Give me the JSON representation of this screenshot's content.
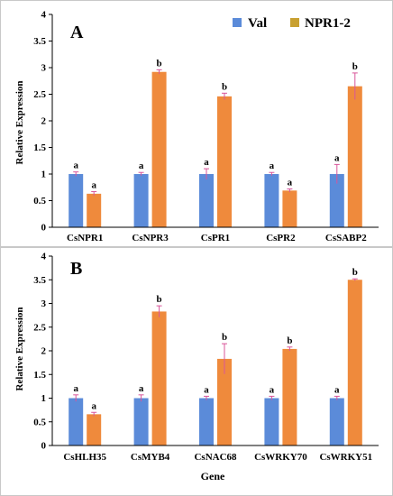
{
  "colors": {
    "val": "#5b8bd9",
    "npr": "#ef8a3c",
    "npr_legend": "#c8a030",
    "axis": "#000000",
    "error": "#d9559a",
    "panel_border": "#c8c8c8"
  },
  "legend": {
    "val_label": "Val",
    "npr_label": "NPR1-2"
  },
  "chart_data": [
    {
      "type": "bar",
      "panel_label": "A",
      "ylabel": "Relative Expression",
      "xlabel": "",
      "ylim": [
        0,
        4
      ],
      "yticks": [
        "0",
        "0.5",
        "1",
        "1.5",
        "2",
        "2.5",
        "3",
        "3.5",
        "4"
      ],
      "categories": [
        "CsNPR1",
        "CsNPR3",
        "CsPR1",
        "CsPR2",
        "CsSABP2"
      ],
      "series": [
        {
          "name": "Val",
          "values": [
            1.0,
            1.0,
            1.0,
            1.0,
            1.0
          ],
          "errors": [
            0.04,
            0.03,
            0.1,
            0.03,
            0.18
          ],
          "letters": [
            "a",
            "a",
            "a",
            "a",
            "a"
          ]
        },
        {
          "name": "NPR1-2",
          "values": [
            0.63,
            2.92,
            2.46,
            0.69,
            2.65
          ],
          "errors": [
            0.04,
            0.04,
            0.06,
            0.03,
            0.25
          ],
          "letters": [
            "a",
            "b",
            "b",
            "a",
            "b"
          ]
        }
      ]
    },
    {
      "type": "bar",
      "panel_label": "B",
      "ylabel": "Relative Expression",
      "xlabel": "Gene",
      "ylim": [
        0,
        4
      ],
      "yticks": [
        "0",
        "0.5",
        "1",
        "1.5",
        "2",
        "2.5",
        "3",
        "3.5",
        "4"
      ],
      "categories": [
        "CsHLH35",
        "CsMYB4",
        "CsNAC68",
        "CsWRKY70",
        "CsWRKY51"
      ],
      "series": [
        {
          "name": "Val",
          "values": [
            1.0,
            1.0,
            1.0,
            1.0,
            1.0
          ],
          "errors": [
            0.07,
            0.07,
            0.04,
            0.04,
            0.04
          ],
          "letters": [
            "a",
            "a",
            "a",
            "a",
            "a"
          ]
        },
        {
          "name": "NPR1-2",
          "values": [
            0.66,
            2.83,
            1.83,
            2.04,
            3.5
          ],
          "errors": [
            0.04,
            0.12,
            0.32,
            0.04,
            0.02
          ],
          "letters": [
            "a",
            "b",
            "b",
            "b",
            "b"
          ]
        }
      ]
    }
  ]
}
